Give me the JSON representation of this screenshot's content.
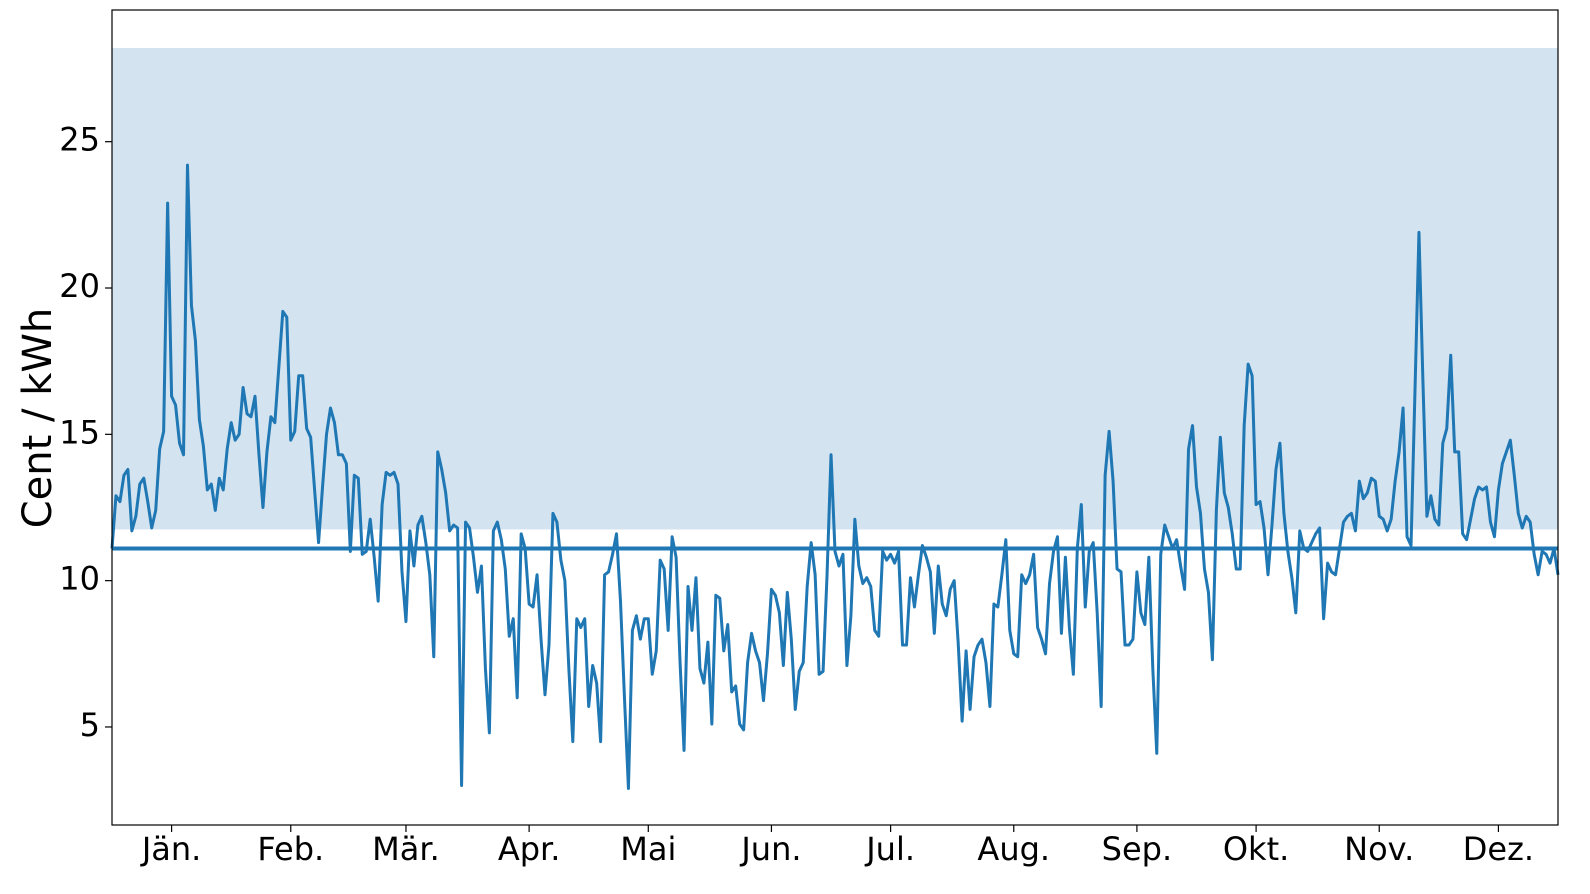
{
  "chart_data": {
    "type": "line",
    "y_label": "Cent / kWh",
    "color": "#1f77b4",
    "xlim": [
      0,
      364
    ],
    "xticks": [
      {
        "value": 15,
        "label": "Jän."
      },
      {
        "value": 45,
        "label": "Feb."
      },
      {
        "value": 74,
        "label": "Mär."
      },
      {
        "value": 105,
        "label": "Apr."
      },
      {
        "value": 135,
        "label": "Mai"
      },
      {
        "value": 166,
        "label": "Jun."
      },
      {
        "value": 196,
        "label": "Jul."
      },
      {
        "value": 227,
        "label": "Aug."
      },
      {
        "value": 258,
        "label": "Sep."
      },
      {
        "value": 288,
        "label": "Okt."
      },
      {
        "value": 319,
        "label": "Nov."
      },
      {
        "value": 349,
        "label": "Dez."
      }
    ],
    "ylim": [
      1.65,
      29.5
    ],
    "yticks": [
      5,
      10,
      15,
      20,
      25
    ],
    "shaded_range": {
      "from": 11.75,
      "to": 28.2,
      "color": "#d3e3f0"
    },
    "reference_line": {
      "value": 11.1,
      "color": "#1f77b4"
    },
    "values": [
      11.1,
      12.9,
      12.7,
      13.6,
      13.8,
      11.7,
      12.2,
      13.3,
      13.5,
      12.7,
      11.8,
      12.4,
      14.5,
      15.1,
      22.9,
      16.3,
      16.0,
      14.7,
      14.3,
      24.2,
      19.4,
      18.2,
      15.5,
      14.6,
      13.1,
      13.3,
      12.4,
      13.5,
      13.1,
      14.5,
      15.4,
      14.8,
      15.0,
      16.6,
      15.7,
      15.6,
      16.3,
      14.3,
      12.5,
      14.4,
      15.6,
      15.4,
      17.3,
      19.2,
      19.0,
      14.8,
      15.1,
      17.0,
      17.0,
      15.2,
      14.9,
      13.1,
      11.3,
      13.2,
      15.0,
      15.9,
      15.4,
      14.3,
      14.3,
      14.0,
      11.0,
      13.6,
      13.5,
      10.9,
      11.0,
      12.1,
      10.8,
      9.3,
      12.6,
      13.7,
      13.6,
      13.7,
      13.3,
      10.3,
      8.6,
      11.7,
      10.5,
      11.9,
      12.2,
      11.3,
      10.2,
      7.4,
      14.4,
      13.8,
      13.0,
      11.7,
      11.9,
      11.8,
      3.0,
      12.0,
      11.8,
      10.8,
      9.6,
      10.5,
      7.0,
      4.8,
      11.7,
      12.0,
      11.4,
      10.4,
      8.1,
      8.7,
      6.0,
      11.6,
      11.1,
      9.2,
      9.1,
      10.2,
      8.0,
      6.1,
      7.8,
      12.3,
      12.0,
      10.7,
      10.0,
      7.0,
      4.5,
      8.7,
      8.4,
      8.7,
      5.7,
      7.1,
      6.5,
      4.5,
      10.2,
      10.3,
      10.9,
      11.6,
      9.3,
      6.0,
      2.9,
      8.3,
      8.8,
      8.0,
      8.7,
      8.7,
      6.8,
      7.6,
      10.7,
      10.4,
      8.3,
      11.5,
      10.8,
      7.2,
      4.2,
      9.8,
      8.3,
      10.1,
      7.0,
      6.5,
      7.9,
      5.1,
      9.5,
      9.4,
      7.6,
      8.5,
      6.2,
      6.4,
      5.1,
      4.9,
      7.2,
      8.2,
      7.6,
      7.2,
      5.9,
      7.5,
      9.7,
      9.5,
      8.9,
      7.1,
      9.6,
      8.0,
      5.6,
      6.9,
      7.2,
      9.8,
      11.3,
      10.2,
      6.8,
      6.9,
      10.2,
      14.3,
      11.0,
      10.5,
      10.9,
      7.1,
      8.8,
      12.1,
      10.5,
      9.9,
      10.1,
      9.8,
      8.3,
      8.1,
      11.0,
      10.7,
      10.9,
      10.6,
      11.0,
      7.8,
      7.8,
      10.1,
      9.1,
      10.2,
      11.2,
      10.8,
      10.3,
      8.2,
      10.5,
      9.2,
      8.8,
      9.7,
      10.0,
      7.9,
      5.2,
      7.6,
      5.6,
      7.4,
      7.8,
      8.0,
      7.2,
      5.7,
      9.2,
      9.1,
      10.2,
      11.4,
      8.3,
      7.5,
      7.4,
      10.2,
      9.9,
      10.2,
      10.9,
      8.4,
      8.0,
      7.5,
      9.9,
      11.0,
      11.5,
      8.2,
      10.8,
      8.4,
      6.8,
      11.1,
      12.6,
      9.1,
      11.0,
      11.3,
      8.9,
      5.7,
      13.6,
      15.1,
      13.4,
      10.4,
      10.3,
      7.8,
      7.8,
      8.0,
      10.3,
      8.9,
      8.5,
      10.8,
      7.0,
      4.1,
      10.9,
      11.9,
      11.5,
      11.1,
      11.4,
      10.5,
      9.7,
      14.5,
      15.3,
      13.2,
      12.3,
      10.4,
      9.6,
      7.3,
      12.4,
      14.9,
      13.0,
      12.5,
      11.6,
      10.4,
      10.4,
      15.3,
      17.4,
      17.0,
      12.6,
      12.7,
      11.8,
      10.2,
      11.9,
      13.8,
      14.7,
      12.3,
      11.0,
      10.1,
      8.9,
      11.7,
      11.1,
      11.0,
      11.3,
      11.6,
      11.8,
      8.7,
      10.6,
      10.3,
      10.2,
      11.1,
      12.0,
      12.2,
      12.3,
      11.7,
      13.4,
      12.8,
      13.0,
      13.5,
      13.4,
      12.2,
      12.1,
      11.7,
      12.1,
      13.4,
      14.4,
      15.9,
      11.5,
      11.2,
      16.5,
      21.9,
      16.8,
      12.2,
      12.9,
      12.1,
      11.9,
      14.7,
      15.2,
      17.7,
      14.4,
      14.4,
      11.6,
      11.4,
      12.1,
      12.8,
      13.2,
      13.1,
      13.2,
      12.0,
      11.5,
      13.1,
      14.0,
      14.4,
      14.8,
      13.6,
      12.3,
      11.8,
      12.2,
      12.0,
      10.9,
      10.2,
      11.0,
      10.9,
      10.6,
      11.1,
      10.2
    ]
  }
}
